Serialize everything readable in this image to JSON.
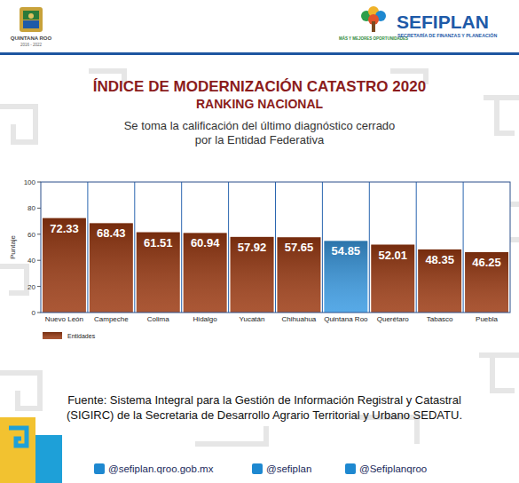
{
  "header": {
    "left_logo": "QUINTANA ROO",
    "left_years": "2016 - 2022",
    "right_logo": "SEFIPLAN",
    "right_subtitle": "SECRETARÍA DE FINANZAS Y PLANEACIÓN",
    "slogan": "MÁS Y MEJORES OPORTUNIDADES"
  },
  "chart_data": {
    "type": "bar",
    "title": "ÍNDICE DE MODERNIZACIÓN CATASTRO 2020",
    "subtitle": "RANKING NACIONAL",
    "note": "Se toma la calificación del último diagnóstico cerrado por la Entidad Federativa",
    "y_label": "Puntaje",
    "categories": [
      "Nuevo León",
      "Campeche",
      "Colima",
      "Hidalgo",
      "Yucatán",
      "Chihuahua",
      "Quintana Roo",
      "Querétaro",
      "Tabasco",
      "Puebla"
    ],
    "series": [
      {
        "name": "Entidades",
        "color": "#9c3a12",
        "colors": [
          "#9c3a12",
          "#9c3a12",
          "#9c3a12",
          "#9c3a12",
          "#9c3a12",
          "#9c3a12",
          "#3a9be3",
          "#9c3a12",
          "#9c3a12",
          "#9c3a12"
        ],
        "values": [
          72.33,
          68.43,
          61.51,
          60.94,
          57.92,
          57.65,
          54.85,
          52.01,
          48.35,
          46.25
        ]
      }
    ],
    "ylim": [
      0,
      100
    ],
    "yticks": [
      0,
      20,
      40,
      60,
      80,
      100
    ],
    "grid": false,
    "data_labels": true,
    "legend": "bottom-left"
  },
  "source": "Fuente: Sistema Integral para la Gestión de Información Registral y Catastral (SIGIRC) de la Secretaria de Desarrollo Agrario Territorial y Urbano SEDATU.",
  "footer": {
    "web": "@sefiplan.qroo.gob.mx",
    "facebook": "@sefiplan",
    "twitter": "@Sefiplanqroo"
  }
}
